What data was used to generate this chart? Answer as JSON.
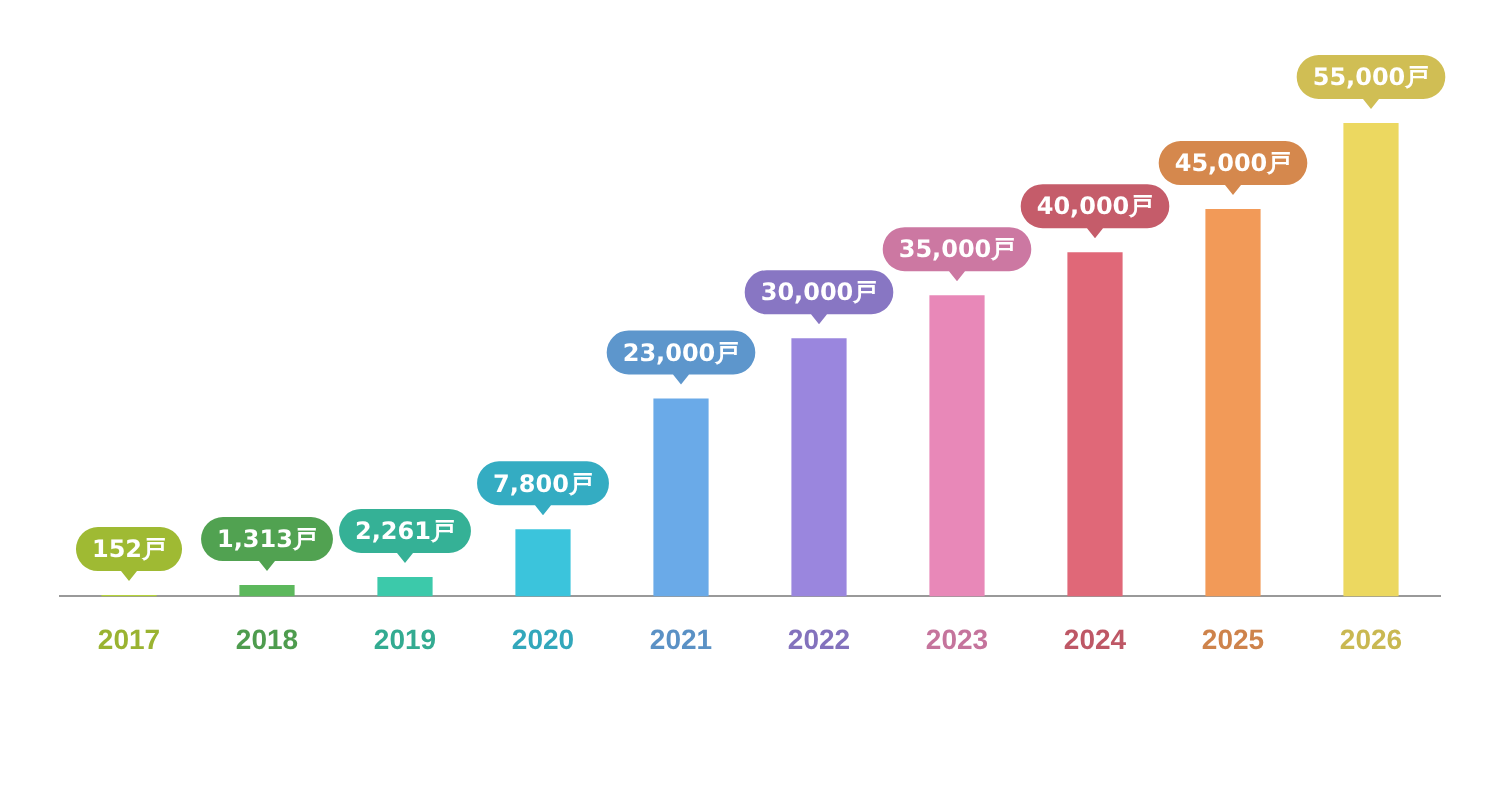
{
  "chart_data": {
    "type": "bar",
    "categories": [
      "2017",
      "2018",
      "2019",
      "2020",
      "2021",
      "2022",
      "2023",
      "2024",
      "2025",
      "2026"
    ],
    "values": [
      152,
      1313,
      2261,
      7800,
      23000,
      30000,
      35000,
      40000,
      45000,
      55000
    ],
    "colors": [
      "#b5d33a",
      "#5cb85c",
      "#3cc9aa",
      "#3bc4dc",
      "#6aaae8",
      "#9a86de",
      "#e888b8",
      "#e06878",
      "#f29a58",
      "#ecd860"
    ],
    "value_labels": [
      "152戸",
      "1,313戸",
      "2,261戸",
      "7,800戸",
      "23,000戸",
      "30,000戸",
      "35,000戸",
      "40,000戸",
      "45,000戸",
      "55,000戸"
    ],
    "grid": false,
    "legend": false
  }
}
